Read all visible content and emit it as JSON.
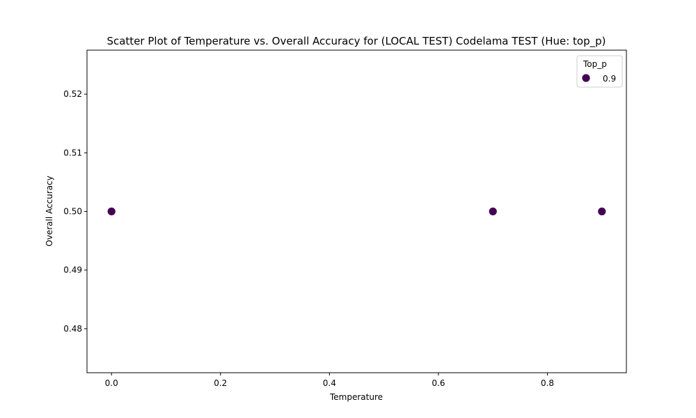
{
  "chart_data": {
    "type": "scatter",
    "title": "Scatter Plot of Temperature vs. Overall Accuracy for (LOCAL TEST) Codelama TEST (Hue: top_p)",
    "xlabel": "Temperature",
    "ylabel": "Overall Accuracy",
    "xlim": [
      -0.045,
      0.945
    ],
    "ylim": [
      0.4725,
      0.5275
    ],
    "xticks": [
      0.0,
      0.2,
      0.4,
      0.6,
      0.8
    ],
    "xtick_labels": [
      "0.0",
      "0.2",
      "0.4",
      "0.6",
      "0.8"
    ],
    "yticks": [
      0.48,
      0.49,
      0.5,
      0.51,
      0.52
    ],
    "ytick_labels": [
      "0.48",
      "0.49",
      "0.50",
      "0.51",
      "0.52"
    ],
    "grid": false,
    "legend": {
      "title": "Top_p",
      "placement": "top-right",
      "entries": [
        {
          "label": "0.9",
          "color": "#440154"
        }
      ]
    },
    "series": [
      {
        "name": "0.9",
        "color": "#440154",
        "points": [
          {
            "x": 0.0,
            "y": 0.5
          },
          {
            "x": 0.7,
            "y": 0.5
          },
          {
            "x": 0.9,
            "y": 0.5
          }
        ]
      }
    ]
  }
}
